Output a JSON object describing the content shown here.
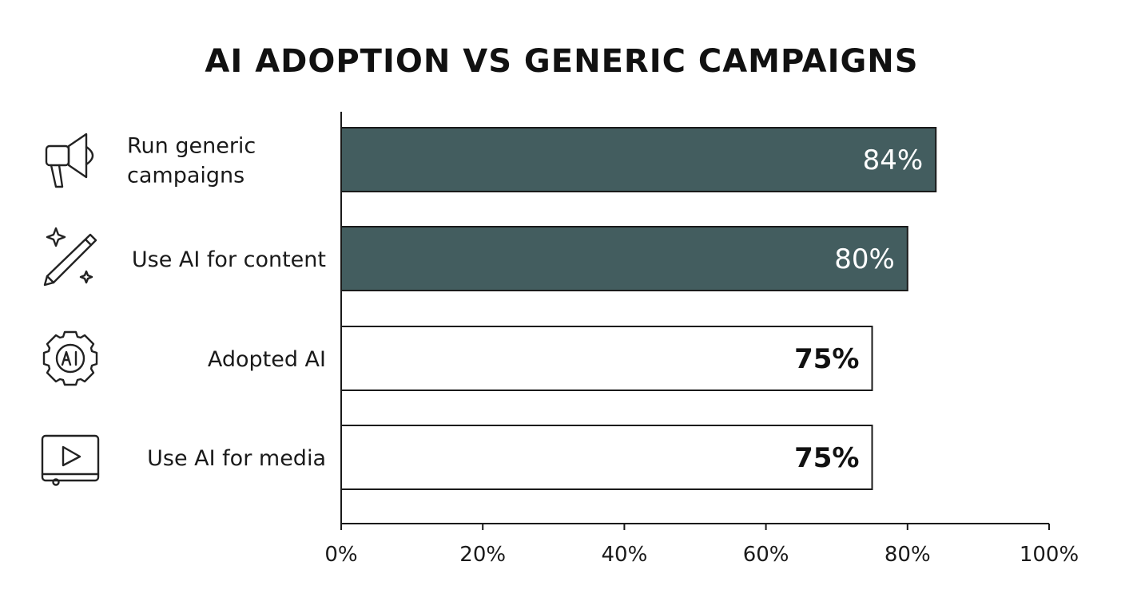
{
  "chart_data": {
    "type": "bar",
    "orientation": "horizontal",
    "title": "AI ADOPTION VS GENERIC CAMPAIGNS",
    "categories": [
      "Run generic campaigns",
      "Use AI for content",
      "Adopted AI",
      "Use AI for media"
    ],
    "category_lines": [
      [
        "Run generic",
        "campaigns"
      ],
      [
        "Use AI for content"
      ],
      [
        "Adopted AI"
      ],
      [
        "Use AI for media"
      ]
    ],
    "values": [
      84,
      80,
      75,
      75
    ],
    "value_labels": [
      "84%",
      "80%",
      "75%",
      "75%"
    ],
    "highlighted": [
      true,
      true,
      false,
      false
    ],
    "icons": [
      "megaphone-icon",
      "pencil-sparkle-icon",
      "ai-gear-icon",
      "video-player-icon"
    ],
    "xlim": [
      0,
      100
    ],
    "xticks": [
      0,
      20,
      40,
      60,
      80,
      100
    ],
    "xtick_labels": [
      "0%",
      "20%",
      "40%",
      "60%",
      "80%",
      "100%"
    ],
    "grid": false,
    "colors": {
      "highlight_fill": "#435d5f",
      "plain_fill": "#ffffff",
      "stroke": "#1a1a1a",
      "highlight_text": "#ffffff",
      "plain_text": "#111111"
    }
  }
}
